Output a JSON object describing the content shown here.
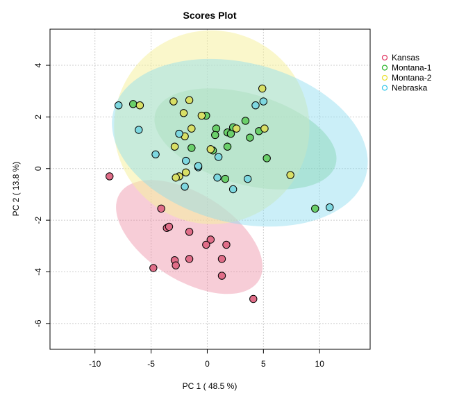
{
  "chart_data": {
    "type": "scatter",
    "title": "Scores Plot",
    "xlabel": "PC 1 ( 48.5 %)",
    "ylabel": "PC 2 ( 13.8 %)",
    "xlim": [
      -14,
      14.5
    ],
    "ylim": [
      -7,
      5.4
    ],
    "x_ticks": [
      -10,
      -5,
      0,
      5,
      10
    ],
    "y_ticks": [
      -6,
      -4,
      -2,
      0,
      2,
      4
    ],
    "grid": true,
    "legend_position": "right",
    "series": [
      {
        "name": "Kansas",
        "color": "#e0335f",
        "fill": "#e06d88",
        "ellipse_fill": "rgba(236,130,155,0.40)",
        "points": [
          [
            -8.7,
            -0.3
          ],
          [
            -4.1,
            -1.55
          ],
          [
            -3.6,
            -2.3
          ],
          [
            -3.4,
            -2.25
          ],
          [
            -1.6,
            -2.45
          ],
          [
            0.3,
            -2.75
          ],
          [
            -0.1,
            -2.95
          ],
          [
            1.7,
            -2.95
          ],
          [
            -1.6,
            -3.5
          ],
          [
            -2.9,
            -3.55
          ],
          [
            -2.8,
            -3.75
          ],
          [
            -4.8,
            -3.85
          ],
          [
            1.3,
            -3.5
          ],
          [
            1.3,
            -4.15
          ],
          [
            4.1,
            -5.05
          ]
        ],
        "ellipse": {
          "center": [
            -1.6,
            -2.65
          ],
          "semi_axes": [
            7.3,
            1.68
          ],
          "angle_deg": -32
        }
      },
      {
        "name": "Montana-1",
        "color": "#22b222",
        "fill": "#6acf6a",
        "ellipse_fill": "rgba(110,200,110,0.40)",
        "points": [
          [
            -6.6,
            2.5
          ],
          [
            -0.1,
            2.05
          ],
          [
            0.8,
            1.55
          ],
          [
            1.8,
            1.4
          ],
          [
            2.1,
            1.35
          ],
          [
            2.3,
            1.6
          ],
          [
            0.7,
            1.3
          ],
          [
            3.4,
            1.85
          ],
          [
            4.6,
            1.45
          ],
          [
            3.8,
            1.2
          ],
          [
            1.8,
            0.85
          ],
          [
            -1.4,
            0.8
          ],
          [
            0.5,
            0.7
          ],
          [
            5.3,
            0.4
          ],
          [
            1.6,
            -0.4
          ],
          [
            9.6,
            -1.55
          ]
        ],
        "ellipse": {
          "center": [
            3.4,
            1.15
          ],
          "semi_axes": [
            8.35,
            1.75
          ],
          "angle_deg": -16
        }
      },
      {
        "name": "Montana-2",
        "color": "#e8e02a",
        "fill": "#d8df66",
        "ellipse_fill": "rgba(245,240,160,0.55)",
        "points": [
          [
            -6.0,
            2.45
          ],
          [
            -3.0,
            2.6
          ],
          [
            -1.6,
            2.65
          ],
          [
            -2.1,
            2.15
          ],
          [
            -0.5,
            2.05
          ],
          [
            -1.4,
            1.55
          ],
          [
            -2.0,
            1.25
          ],
          [
            2.6,
            1.55
          ],
          [
            5.1,
            1.55
          ],
          [
            4.9,
            3.1
          ],
          [
            -2.9,
            0.85
          ],
          [
            0.3,
            0.75
          ],
          [
            -1.9,
            -0.15
          ],
          [
            -2.5,
            -0.3
          ],
          [
            -2.8,
            -0.35
          ],
          [
            7.4,
            -0.25
          ]
        ],
        "ellipse": {
          "center": [
            0.4,
            1.6
          ],
          "semi_axes": [
            8.7,
            3.75
          ],
          "angle_deg": -11
        }
      },
      {
        "name": "Nebraska",
        "color": "#31c6e8",
        "fill": "#7ed8e0",
        "ellipse_fill": "rgba(140,220,240,0.45)",
        "points": [
          [
            -7.9,
            2.45
          ],
          [
            -6.1,
            1.5
          ],
          [
            4.3,
            2.45
          ],
          [
            5.0,
            2.6
          ],
          [
            -2.5,
            1.35
          ],
          [
            -4.6,
            0.55
          ],
          [
            1.0,
            0.45
          ],
          [
            -1.9,
            0.3
          ],
          [
            -0.8,
            0.05
          ],
          [
            -0.8,
            0.1
          ],
          [
            0.9,
            -0.35
          ],
          [
            3.6,
            -0.4
          ],
          [
            -2.0,
            -0.7
          ],
          [
            2.3,
            -0.8
          ],
          [
            10.9,
            -1.5
          ]
        ],
        "ellipse": {
          "center": [
            2.9,
            1.0
          ],
          "semi_axes": [
            11.6,
            3.1
          ],
          "angle_deg": -14
        }
      }
    ]
  }
}
